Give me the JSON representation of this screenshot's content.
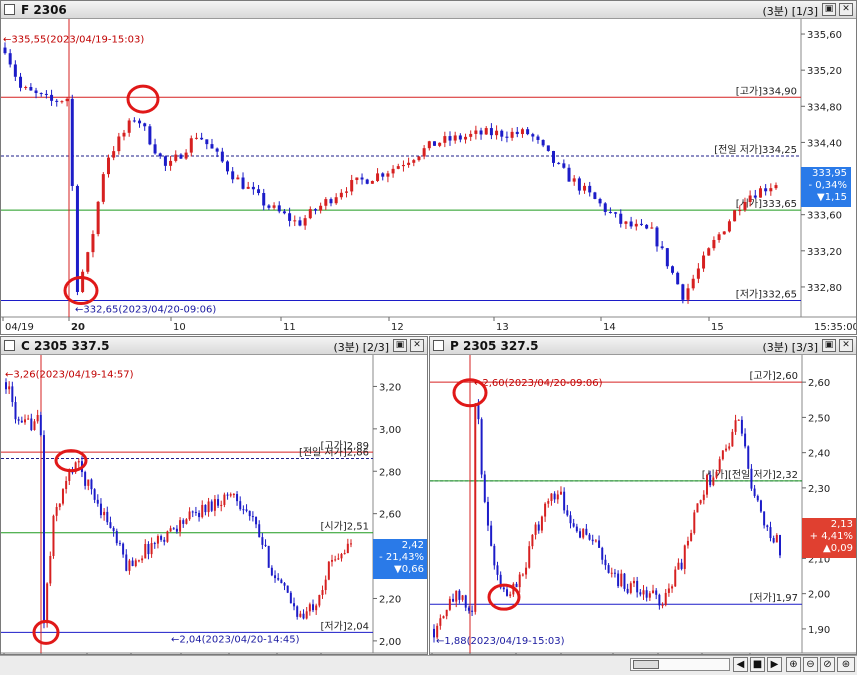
{
  "colors": {
    "up": "#d62020",
    "down": "#1c1cc8",
    "high_line": "#d62020",
    "low_line": "#1c1cc8",
    "open_line": "#1e9a1e",
    "prev_low_line": "#1c1c8a",
    "badge_down": "#2a7ae8",
    "badge_up": "#e04030"
  },
  "panels": [
    {
      "id": "F",
      "title": "F 2306",
      "interval": "(3분)",
      "page": "[1/3]",
      "y_ticks": [
        "335,60",
        "335,20",
        "334,80",
        "334,40",
        "334,00",
        "333,60",
        "333,20",
        "332,80"
      ],
      "x_ticks": [
        "04/19",
        "20",
        "10",
        "11",
        "12",
        "13",
        "14",
        "15",
        "15:35:00"
      ],
      "max_note": "335,55(2023/04/19-15:03)",
      "min_note": "332,65(2023/04/20-09:06)",
      "lines": {
        "high": "[고가]334,90",
        "prev_low": "[전일 저가]334,25",
        "open": "[시가]333,65",
        "low": "[저가]332,65"
      },
      "badge": {
        "price": "333,95",
        "pct": "- 0,34%",
        "chg": "▼1,15"
      },
      "chart_data": {
        "type": "candlestick",
        "ylim": [
          332.6,
          335.7
        ],
        "open": 333.65,
        "high": 334.9,
        "low": 332.65,
        "prev_low": 334.25,
        "close": 333.95,
        "max": 335.55,
        "min": 332.65
      }
    },
    {
      "id": "C",
      "title": "C 2305 337.5",
      "interval": "(3분)",
      "page": "[2/3]",
      "y_ticks": [
        "3,20",
        "3,00",
        "2,80",
        "2,60",
        "2,40",
        "2,20",
        "2,00"
      ],
      "x_ticks": [
        "04/19",
        "04/20",
        "10",
        "11",
        "12",
        "13",
        "14",
        "15",
        "15:35:00"
      ],
      "max_note": "3,26(2023/04/19-14:57)",
      "min_note": "2,04(2023/04/20-14:45)",
      "lines": {
        "high": "[고가]2,89",
        "prev_low": "[전일 저가]2,86",
        "open": "[시가]2,51",
        "low": "[저가]2,04"
      },
      "badge": {
        "price": "2,42",
        "pct": "- 21,43%",
        "chg": "▼0,66"
      },
      "chart_data": {
        "type": "candlestick",
        "ylim": [
          1.99,
          3.32
        ],
        "open": 2.51,
        "high": 2.89,
        "low": 2.04,
        "prev_low": 2.86,
        "close": 2.42,
        "max": 3.26,
        "min": 2.04
      }
    },
    {
      "id": "P",
      "title": "P 2305 327.5",
      "interval": "(3분)",
      "page": "[3/3]",
      "y_ticks": [
        "2,60",
        "2,50",
        "2,40",
        "2,30",
        "2,20",
        "2,10",
        "2,00",
        "1,90"
      ],
      "x_ticks": [
        "04/19",
        "04/20",
        "10",
        "11",
        "12",
        "13",
        "14",
        "15",
        "15:35:00"
      ],
      "max_note": "2,60(2023/04/20-09:06)",
      "min_note": "1,88(2023/04/19-15:03)",
      "lines": {
        "high": "[고가]2,60",
        "prev_low": "[시가][전일 저가]2,32",
        "open": "",
        "low": "[저가]1,97"
      },
      "badge": {
        "price": "2,13",
        "pct": "+ 4,41%",
        "chg": "▲0,09"
      },
      "chart_data": {
        "type": "candlestick",
        "ylim": [
          1.86,
          2.66
        ],
        "open": 2.32,
        "high": 2.6,
        "low": 1.97,
        "prev_low": 2.32,
        "close": 2.13,
        "max": 2.6,
        "min": 1.88
      }
    }
  ],
  "toolbar": {
    "icons": [
      "scroll-left-icon",
      "stop-icon",
      "scroll-right-icon",
      "zoom-in-icon",
      "zoom-out-icon",
      "zoom-reset-icon",
      "zoom-fit-icon",
      "search-icon"
    ]
  }
}
